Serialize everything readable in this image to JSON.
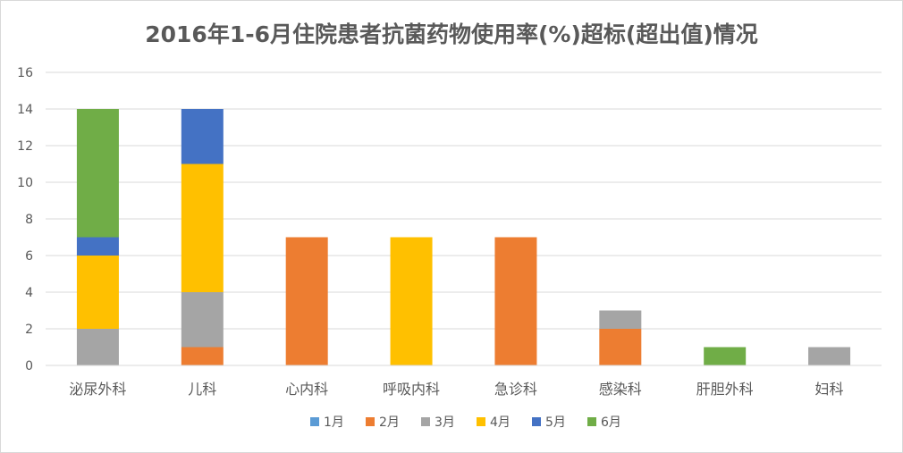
{
  "chart_data": {
    "type": "bar",
    "stacked": true,
    "title": "2016年1-6月住院患者抗菌药物使用率(%)超标(超出值)情况",
    "xlabel": "",
    "ylabel": "",
    "ylim": [
      0,
      16
    ],
    "yticks": [
      0,
      2,
      4,
      6,
      8,
      10,
      12,
      14,
      16
    ],
    "grid": true,
    "legend_position": "bottom",
    "categories": [
      "泌尿外科",
      "儿科",
      "心内科",
      "呼吸内科",
      "急诊科",
      "感染科",
      "肝胆外科",
      "妇科"
    ],
    "series": [
      {
        "name": "1月",
        "color": "#5B9BD5",
        "values": [
          0,
          0,
          0,
          0,
          0,
          0,
          0,
          0
        ]
      },
      {
        "name": "2月",
        "color": "#ED7D31",
        "values": [
          0,
          1,
          7,
          0,
          7,
          2,
          0,
          0
        ]
      },
      {
        "name": "3月",
        "color": "#A5A5A5",
        "values": [
          2,
          3,
          0,
          0,
          0,
          1,
          0,
          1
        ]
      },
      {
        "name": "4月",
        "color": "#FFC000",
        "values": [
          4,
          7,
          0,
          7,
          0,
          0,
          0,
          0
        ]
      },
      {
        "name": "5月",
        "color": "#4472C4",
        "values": [
          1,
          3,
          0,
          0,
          0,
          0,
          0,
          0
        ]
      },
      {
        "name": "6月",
        "color": "#70AD47",
        "values": [
          7,
          0,
          0,
          0,
          0,
          0,
          1,
          0
        ]
      }
    ]
  }
}
